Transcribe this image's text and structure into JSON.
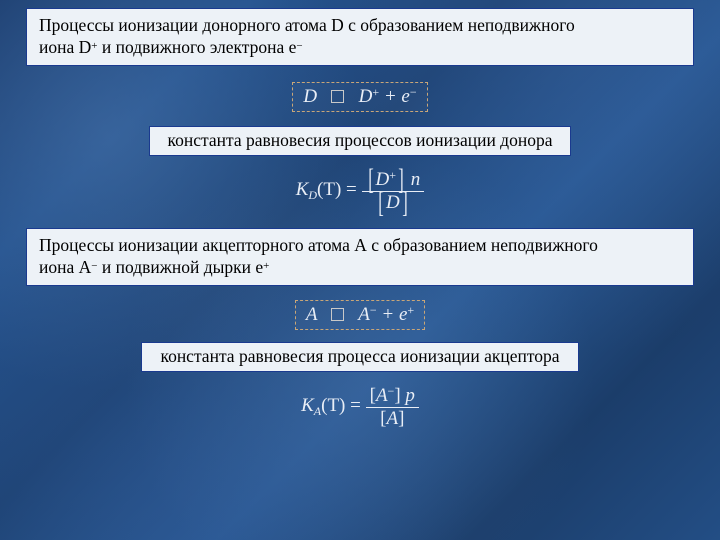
{
  "colors": {
    "box_bg": "#edf2f7",
    "box_border": "#1a3a8f",
    "dashed_border": "#c9a678",
    "equation_text": "#e9eef6",
    "body_text": "#000000"
  },
  "typography": {
    "body_font": "Times New Roman",
    "body_size_pt": 13,
    "equation_size_pt": 14
  },
  "box1": {
    "line1": "Процессы ионизации донорного атома D с образованием неподвижного",
    "line2_pre": "иона D",
    "line2_sup": "+",
    "line2_mid": " и подвижного электрона e",
    "line2_sup2": "−"
  },
  "eq1": {
    "lhs_var": "D",
    "rhs1_var": "D",
    "rhs1_sup": "+",
    "plus": " + ",
    "rhs2_var": "e",
    "rhs2_sup": "−"
  },
  "box2": {
    "text": "константа равновесия процессов ионизации донора"
  },
  "eq2": {
    "K": "K",
    "Ksub": "D",
    "paren": "(T) = ",
    "num_var": "D",
    "num_sup": "+",
    "num_trail": " n",
    "den_var": "D"
  },
  "box3": {
    "line1": "Процессы ионизации акцепторного атома А с образованием неподвижного",
    "line2_pre": "иона А",
    "line2_sup": "−",
    "line2_mid": " и подвижной дырки e",
    "line2_sup2": "+"
  },
  "eq3": {
    "lhs_var": "A",
    "rhs1_var": "A",
    "rhs1_sup": "−",
    "plus": " + ",
    "rhs2_var": "e",
    "rhs2_sup": "+"
  },
  "box4": {
    "text": "константа равновесия процесса ионизации акцептора"
  },
  "eq4": {
    "K": "K",
    "Ksub": "A",
    "paren": "(T) = ",
    "num_var": "A",
    "num_sup": "−",
    "num_trail": " p",
    "den_var": "A"
  }
}
